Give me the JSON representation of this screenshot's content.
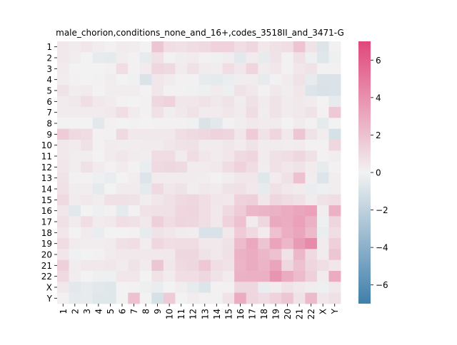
{
  "chart_data": {
    "type": "heatmap",
    "title": "male_chorion,conditions_none_and_16+,codes_3518II_and_3471-G",
    "xlabel": "",
    "ylabel": "",
    "rows": [
      "1",
      "2",
      "3",
      "4",
      "5",
      "6",
      "7",
      "8",
      "9",
      "10",
      "11",
      "12",
      "13",
      "14",
      "15",
      "16",
      "17",
      "18",
      "19",
      "20",
      "21",
      "22",
      "X",
      "Y"
    ],
    "cols": [
      "1",
      "2",
      "3",
      "4",
      "5",
      "6",
      "7",
      "8",
      "9",
      "10",
      "11",
      "12",
      "13",
      "14",
      "15",
      "16",
      "17",
      "18",
      "19",
      "20",
      "21",
      "22",
      "X",
      "Y"
    ],
    "colorbar": {
      "vmin": -7,
      "vmax": 7,
      "ticks": [
        -6,
        -4,
        -2,
        0,
        2,
        4,
        6
      ],
      "tick_labels": [
        "−6",
        "−4",
        "−2",
        "0",
        "2",
        "4",
        "6"
      ]
    },
    "colors": {
      "negative": "#3f7fab",
      "center": "#f2f2f2",
      "positive": "#e0477a"
    },
    "values": [
      [
        0.4,
        0.3,
        0.5,
        0.2,
        0.1,
        0.3,
        0.2,
        0.0,
        1.8,
        0.8,
        0.7,
        0.9,
        1.0,
        1.3,
        1.3,
        0.8,
        1.1,
        0.4,
        0.7,
        0.8,
        1.9,
        0.6,
        -0.8,
        0.1
      ],
      [
        0.4,
        0.2,
        0.0,
        -0.4,
        -0.5,
        0.2,
        0.1,
        -0.4,
        0.7,
        0.1,
        0.2,
        0.3,
        0.1,
        -0.1,
        0.2,
        -0.6,
        0.3,
        -0.4,
        0.6,
        0.1,
        0.7,
        -0.2,
        -0.7,
        -0.2
      ],
      [
        0.3,
        0.0,
        0.0,
        0.0,
        0.1,
        0.8,
        0.1,
        0.3,
        1.1,
        1.0,
        0.3,
        0.7,
        0.3,
        0.2,
        0.8,
        0.5,
        1.2,
        0.3,
        0.5,
        0.1,
        0.5,
        0.6,
        0.1,
        0.1
      ],
      [
        0.2,
        0.1,
        0.0,
        0.1,
        0.2,
        0.0,
        -0.1,
        -0.9,
        0.5,
        0.3,
        0.1,
        0.1,
        -0.4,
        -0.5,
        -0.3,
        0.2,
        0.2,
        -0.4,
        0.1,
        0.3,
        0.6,
        -0.4,
        -0.9,
        -0.9
      ],
      [
        0.6,
        0.2,
        0.3,
        0.0,
        0.2,
        0.2,
        0.2,
        0.0,
        0.5,
        0.1,
        0.1,
        -0.1,
        -0.2,
        0.3,
        -0.2,
        0.6,
        0.4,
        0.1,
        0.4,
        0.2,
        0.5,
        -0.8,
        -1.0,
        -0.9
      ],
      [
        0.3,
        0.4,
        0.8,
        0.4,
        0.3,
        0.1,
        0.0,
        0.1,
        1.1,
        1.3,
        0.5,
        0.5,
        0.6,
        0.4,
        0.6,
        0.2,
        0.7,
        0.3,
        0.6,
        0.3,
        0.4,
        0.3,
        0.0,
        -0.4
      ],
      [
        0.3,
        0.3,
        0.3,
        0.3,
        0.4,
        0.8,
        0.3,
        0.1,
        0.7,
        0.2,
        0.4,
        0.6,
        0.3,
        0.3,
        0.5,
        0.3,
        0.9,
        0.2,
        0.6,
        0.3,
        0.4,
        0.6,
        0.1,
        1.7
      ],
      [
        0.0,
        0.0,
        0.0,
        -0.6,
        0.1,
        0.0,
        0.1,
        0.0,
        0.1,
        0.1,
        0.1,
        -0.1,
        -0.9,
        -0.6,
        0.1,
        0.2,
        0.4,
        0.3,
        0.3,
        0.0,
        0.3,
        0.1,
        -0.5,
        0.0
      ],
      [
        1.6,
        1.0,
        0.9,
        0.1,
        0.1,
        1.0,
        0.4,
        0.4,
        0.4,
        0.4,
        0.8,
        1.0,
        1.1,
        1.3,
        1.2,
        0.5,
        1.6,
        0.6,
        1.2,
        0.4,
        1.8,
        0.6,
        0.2,
        -1.1
      ],
      [
        0.4,
        0.3,
        0.7,
        0.1,
        0.3,
        0.2,
        0.2,
        0.3,
        0.3,
        0.5,
        0.6,
        0.7,
        0.3,
        0.3,
        0.5,
        0.3,
        0.6,
        0.3,
        0.3,
        0.2,
        0.3,
        0.1,
        0.1,
        1.1
      ],
      [
        0.4,
        0.2,
        0.2,
        0.0,
        0.3,
        0.5,
        0.3,
        0.2,
        0.9,
        0.9,
        0.3,
        0.9,
        0.5,
        0.3,
        0.5,
        1.0,
        1.2,
        0.3,
        0.7,
        0.8,
        1.1,
        0.7,
        0.1,
        0.2
      ],
      [
        0.5,
        0.2,
        0.7,
        0.3,
        0.1,
        0.3,
        0.1,
        -0.3,
        1.0,
        1.1,
        1.0,
        0.3,
        0.3,
        0.4,
        0.9,
        1.3,
        0.9,
        0.2,
        0.7,
        0.5,
        0.6,
        0.3,
        -0.4,
        0.1
      ],
      [
        0.6,
        0.1,
        0.1,
        -0.2,
        -0.3,
        0.0,
        0.2,
        -0.8,
        0.3,
        0.3,
        0.3,
        0.3,
        0.2,
        0.1,
        0.2,
        0.5,
        0.5,
        -0.7,
        0.3,
        0.7,
        2.0,
        0.2,
        -0.8,
        0.2
      ],
      [
        0.7,
        0.2,
        0.2,
        -0.5,
        0.0,
        0.3,
        0.3,
        -0.5,
        1.0,
        0.5,
        0.6,
        0.2,
        0.4,
        0.3,
        0.6,
        0.7,
        0.4,
        -0.4,
        0.7,
        0.4,
        0.3,
        -0.3,
        -0.2,
        0.2
      ],
      [
        1.0,
        0.3,
        0.4,
        0.2,
        0.7,
        0.7,
        0.6,
        0.2,
        0.5,
        0.7,
        1.0,
        1.1,
        0.8,
        0.5,
        0.4,
        1.3,
        1.4,
        0.5,
        1.1,
        0.9,
        0.7,
        0.3,
        0.6,
        0.8
      ],
      [
        0.5,
        -0.6,
        0.0,
        -0.2,
        0.1,
        -0.5,
        0.1,
        0.6,
        0.7,
        0.7,
        1.1,
        1.2,
        0.8,
        0.4,
        1.0,
        1.6,
        2.4,
        2.5,
        2.6,
        2.9,
        3.1,
        3.3,
        0.2,
        2.6
      ],
      [
        0.7,
        0.3,
        0.8,
        0.3,
        0.4,
        0.8,
        0.7,
        0.4,
        1.4,
        0.9,
        1.2,
        1.1,
        0.8,
        0.4,
        1.3,
        2.0,
        0.3,
        1.1,
        3.0,
        2.9,
        3.3,
        2.6,
        -0.2,
        1.2
      ],
      [
        0.5,
        0.0,
        0.3,
        -0.3,
        0.0,
        0.0,
        0.1,
        -0.4,
        0.6,
        0.5,
        0.3,
        0.2,
        -1.0,
        -1.0,
        0.4,
        1.6,
        1.0,
        0.3,
        2.0,
        2.8,
        3.1,
        2.3,
        -0.3,
        0.8
      ],
      [
        0.9,
        0.3,
        0.2,
        0.2,
        0.3,
        0.7,
        0.8,
        0.2,
        1.1,
        0.8,
        0.9,
        0.9,
        0.4,
        0.4,
        0.6,
        2.2,
        3.0,
        1.9,
        3.2,
        2.4,
        3.6,
        4.2,
        0.3,
        1.4
      ],
      [
        0.5,
        -0.1,
        0.0,
        0.1,
        0.3,
        0.4,
        0.4,
        0.4,
        0.4,
        0.4,
        1.1,
        1.1,
        0.6,
        0.4,
        0.7,
        2.6,
        2.9,
        2.4,
        2.0,
        0.6,
        2.4,
        1.0,
        0.3,
        1.8
      ],
      [
        1.4,
        0.2,
        0.4,
        0.4,
        0.5,
        0.3,
        0.6,
        0.3,
        1.8,
        0.5,
        1.0,
        1.1,
        1.7,
        0.8,
        0.6,
        2.5,
        2.9,
        2.5,
        3.2,
        1.1,
        2.0,
        1.2,
        0.8,
        0.5
      ],
      [
        1.0,
        0.2,
        0.0,
        -0.2,
        -0.2,
        0.5,
        0.5,
        0.0,
        0.6,
        0.3,
        0.8,
        0.8,
        1.1,
        0.6,
        0.3,
        2.6,
        2.7,
        2.7,
        3.8,
        2.9,
        2.2,
        1.4,
        0.3,
        2.9
      ],
      [
        0.4,
        -0.6,
        -0.4,
        -0.6,
        -0.7,
        0.0,
        0.1,
        -0.2,
        -0.3,
        0.0,
        0.2,
        -0.4,
        -0.8,
        0.1,
        0.1,
        1.1,
        1.1,
        -0.3,
        0.2,
        0.6,
        0.4,
        0.2,
        -0.2,
        0.4
      ],
      [
        0.1,
        -0.5,
        -0.4,
        -0.7,
        -0.7,
        0.0,
        2.0,
        0.0,
        -1.1,
        1.6,
        0.0,
        0.2,
        0.1,
        0.1,
        0.6,
        2.9,
        1.2,
        0.9,
        1.3,
        1.8,
        0.6,
        2.3,
        0.5,
        0.7
      ]
    ]
  }
}
